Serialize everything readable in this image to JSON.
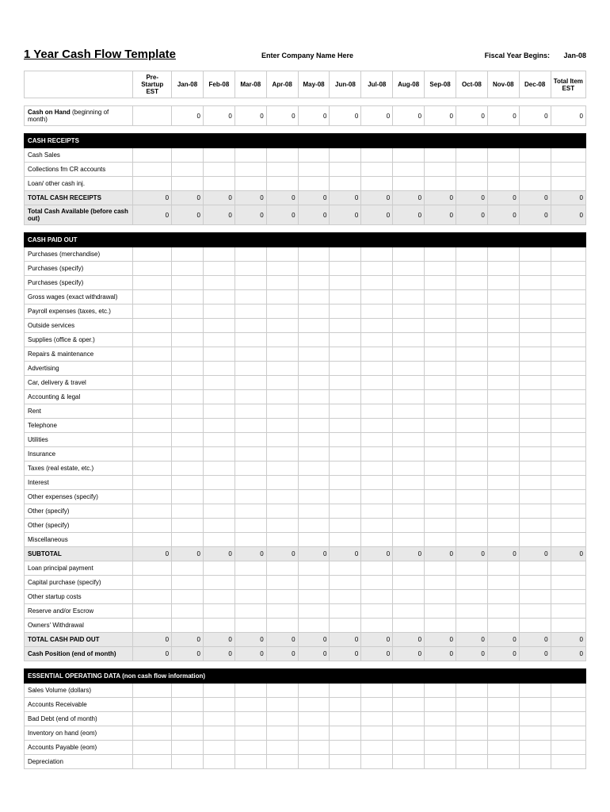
{
  "header": {
    "title": "1 Year Cash Flow Template",
    "company_name": "Enter Company Name Here",
    "fiscal_label": "Fiscal Year Begins:",
    "fiscal_value": "Jan-08"
  },
  "columns": [
    "Pre-Startup EST",
    "Jan-08",
    "Feb-08",
    "Mar-08",
    "Apr-08",
    "May-08",
    "Jun-08",
    "Jul-08",
    "Aug-08",
    "Sep-08",
    "Oct-08",
    "Nov-08",
    "Dec-08",
    "Total Item EST"
  ],
  "rows": [
    {
      "type": "spacer"
    },
    {
      "type": "data",
      "label": "<b>Cash on Hand</b> (beginning of month)",
      "vals": [
        "",
        "0",
        "0",
        "0",
        "0",
        "0",
        "0",
        "0",
        "0",
        "0",
        "0",
        "0",
        "0",
        "0"
      ]
    },
    {
      "type": "spacer"
    },
    {
      "type": "section",
      "label": "CASH RECEIPTS"
    },
    {
      "type": "data",
      "label": "Cash Sales",
      "vals": [
        "",
        "",
        "",
        "",
        "",
        "",
        "",
        "",
        "",
        "",
        "",
        "",
        "",
        ""
      ]
    },
    {
      "type": "data",
      "label": "Collections fm CR accounts",
      "vals": [
        "",
        "",
        "",
        "",
        "",
        "",
        "",
        "",
        "",
        "",
        "",
        "",
        "",
        ""
      ]
    },
    {
      "type": "data",
      "label": "Loan/ other cash inj.",
      "vals": [
        "",
        "",
        "",
        "",
        "",
        "",
        "",
        "",
        "",
        "",
        "",
        "",
        "",
        ""
      ]
    },
    {
      "type": "bold-shaded",
      "label": "TOTAL CASH RECEIPTS",
      "vals": [
        "0",
        "0",
        "0",
        "0",
        "0",
        "0",
        "0",
        "0",
        "0",
        "0",
        "0",
        "0",
        "0",
        "0"
      ]
    },
    {
      "type": "bold-shaded",
      "label": "<b>Total Cash Available</b> (before cash out)",
      "vals": [
        "0",
        "0",
        "0",
        "0",
        "0",
        "0",
        "0",
        "0",
        "0",
        "0",
        "0",
        "0",
        "0",
        "0"
      ]
    },
    {
      "type": "spacer"
    },
    {
      "type": "section",
      "label": "CASH PAID OUT"
    },
    {
      "type": "data",
      "label": "Purchases (merchandise)",
      "vals": [
        "",
        "",
        "",
        "",
        "",
        "",
        "",
        "",
        "",
        "",
        "",
        "",
        "",
        ""
      ]
    },
    {
      "type": "data",
      "label": "Purchases (specify)",
      "vals": [
        "",
        "",
        "",
        "",
        "",
        "",
        "",
        "",
        "",
        "",
        "",
        "",
        "",
        ""
      ]
    },
    {
      "type": "data",
      "label": "Purchases (specify)",
      "vals": [
        "",
        "",
        "",
        "",
        "",
        "",
        "",
        "",
        "",
        "",
        "",
        "",
        "",
        ""
      ]
    },
    {
      "type": "data",
      "label": "Gross wages (exact withdrawal)",
      "vals": [
        "",
        "",
        "",
        "",
        "",
        "",
        "",
        "",
        "",
        "",
        "",
        "",
        "",
        ""
      ]
    },
    {
      "type": "data",
      "label": "Payroll expenses (taxes, etc.)",
      "vals": [
        "",
        "",
        "",
        "",
        "",
        "",
        "",
        "",
        "",
        "",
        "",
        "",
        "",
        ""
      ]
    },
    {
      "type": "data",
      "label": "Outside services",
      "vals": [
        "",
        "",
        "",
        "",
        "",
        "",
        "",
        "",
        "",
        "",
        "",
        "",
        "",
        ""
      ]
    },
    {
      "type": "data",
      "label": "Supplies (office & oper.)",
      "vals": [
        "",
        "",
        "",
        "",
        "",
        "",
        "",
        "",
        "",
        "",
        "",
        "",
        "",
        ""
      ]
    },
    {
      "type": "data",
      "label": "Repairs & maintenance",
      "vals": [
        "",
        "",
        "",
        "",
        "",
        "",
        "",
        "",
        "",
        "",
        "",
        "",
        "",
        ""
      ]
    },
    {
      "type": "data",
      "label": "Advertising",
      "vals": [
        "",
        "",
        "",
        "",
        "",
        "",
        "",
        "",
        "",
        "",
        "",
        "",
        "",
        ""
      ]
    },
    {
      "type": "data",
      "label": "Car, delivery & travel",
      "vals": [
        "",
        "",
        "",
        "",
        "",
        "",
        "",
        "",
        "",
        "",
        "",
        "",
        "",
        ""
      ]
    },
    {
      "type": "data",
      "label": "Accounting & legal",
      "vals": [
        "",
        "",
        "",
        "",
        "",
        "",
        "",
        "",
        "",
        "",
        "",
        "",
        "",
        ""
      ]
    },
    {
      "type": "data",
      "label": "Rent",
      "vals": [
        "",
        "",
        "",
        "",
        "",
        "",
        "",
        "",
        "",
        "",
        "",
        "",
        "",
        ""
      ]
    },
    {
      "type": "data",
      "label": "Telephone",
      "vals": [
        "",
        "",
        "",
        "",
        "",
        "",
        "",
        "",
        "",
        "",
        "",
        "",
        "",
        ""
      ]
    },
    {
      "type": "data",
      "label": "Utilities",
      "vals": [
        "",
        "",
        "",
        "",
        "",
        "",
        "",
        "",
        "",
        "",
        "",
        "",
        "",
        ""
      ]
    },
    {
      "type": "data",
      "label": "Insurance",
      "vals": [
        "",
        "",
        "",
        "",
        "",
        "",
        "",
        "",
        "",
        "",
        "",
        "",
        "",
        ""
      ]
    },
    {
      "type": "data",
      "label": "Taxes (real estate, etc.)",
      "vals": [
        "",
        "",
        "",
        "",
        "",
        "",
        "",
        "",
        "",
        "",
        "",
        "",
        "",
        ""
      ]
    },
    {
      "type": "data",
      "label": "Interest",
      "vals": [
        "",
        "",
        "",
        "",
        "",
        "",
        "",
        "",
        "",
        "",
        "",
        "",
        "",
        ""
      ]
    },
    {
      "type": "data",
      "label": "Other expenses (specify)",
      "vals": [
        "",
        "",
        "",
        "",
        "",
        "",
        "",
        "",
        "",
        "",
        "",
        "",
        "",
        ""
      ]
    },
    {
      "type": "data",
      "label": "Other (specify)",
      "vals": [
        "",
        "",
        "",
        "",
        "",
        "",
        "",
        "",
        "",
        "",
        "",
        "",
        "",
        ""
      ]
    },
    {
      "type": "data",
      "label": "Other (specify)",
      "vals": [
        "",
        "",
        "",
        "",
        "",
        "",
        "",
        "",
        "",
        "",
        "",
        "",
        "",
        ""
      ]
    },
    {
      "type": "data",
      "label": "Miscellaneous",
      "vals": [
        "",
        "",
        "",
        "",
        "",
        "",
        "",
        "",
        "",
        "",
        "",
        "",
        "",
        ""
      ]
    },
    {
      "type": "bold-shaded",
      "label": "SUBTOTAL",
      "vals": [
        "0",
        "0",
        "0",
        "0",
        "0",
        "0",
        "0",
        "0",
        "0",
        "0",
        "0",
        "0",
        "0",
        "0"
      ]
    },
    {
      "type": "data",
      "label": "Loan principal payment",
      "vals": [
        "",
        "",
        "",
        "",
        "",
        "",
        "",
        "",
        "",
        "",
        "",
        "",
        "",
        ""
      ]
    },
    {
      "type": "data",
      "label": "Capital purchase (specify)",
      "vals": [
        "",
        "",
        "",
        "",
        "",
        "",
        "",
        "",
        "",
        "",
        "",
        "",
        "",
        ""
      ]
    },
    {
      "type": "data",
      "label": "Other startup costs",
      "vals": [
        "",
        "",
        "",
        "",
        "",
        "",
        "",
        "",
        "",
        "",
        "",
        "",
        "",
        ""
      ]
    },
    {
      "type": "data",
      "label": "Reserve and/or Escrow",
      "vals": [
        "",
        "",
        "",
        "",
        "",
        "",
        "",
        "",
        "",
        "",
        "",
        "",
        "",
        ""
      ]
    },
    {
      "type": "data",
      "label": "Owners' Withdrawal",
      "vals": [
        "",
        "",
        "",
        "",
        "",
        "",
        "",
        "",
        "",
        "",
        "",
        "",
        "",
        ""
      ]
    },
    {
      "type": "bold-shaded",
      "label": "TOTAL CASH PAID OUT",
      "vals": [
        "0",
        "0",
        "0",
        "0",
        "0",
        "0",
        "0",
        "0",
        "0",
        "0",
        "0",
        "0",
        "0",
        "0"
      ]
    },
    {
      "type": "bold-shaded",
      "label": "<b>Cash Position</b> (end of month)",
      "vals": [
        "0",
        "0",
        "0",
        "0",
        "0",
        "0",
        "0",
        "0",
        "0",
        "0",
        "0",
        "0",
        "0",
        "0"
      ]
    },
    {
      "type": "spacer"
    },
    {
      "type": "section",
      "label": "ESSENTIAL OPERATING DATA (non cash flow information)"
    },
    {
      "type": "data",
      "label": "Sales Volume (dollars)",
      "vals": [
        "",
        "",
        "",
        "",
        "",
        "",
        "",
        "",
        "",
        "",
        "",
        "",
        "",
        ""
      ]
    },
    {
      "type": "data",
      "label": "Accounts Receivable",
      "vals": [
        "",
        "",
        "",
        "",
        "",
        "",
        "",
        "",
        "",
        "",
        "",
        "",
        "",
        ""
      ]
    },
    {
      "type": "data",
      "label": "Bad Debt (end of month)",
      "vals": [
        "",
        "",
        "",
        "",
        "",
        "",
        "",
        "",
        "",
        "",
        "",
        "",
        "",
        ""
      ]
    },
    {
      "type": "data",
      "label": "Inventory on hand (eom)",
      "vals": [
        "",
        "",
        "",
        "",
        "",
        "",
        "",
        "",
        "",
        "",
        "",
        "",
        "",
        ""
      ]
    },
    {
      "type": "data",
      "label": "Accounts Payable (eom)",
      "vals": [
        "",
        "",
        "",
        "",
        "",
        "",
        "",
        "",
        "",
        "",
        "",
        "",
        "",
        ""
      ]
    },
    {
      "type": "data",
      "label": "Depreciation",
      "vals": [
        "",
        "",
        "",
        "",
        "",
        "",
        "",
        "",
        "",
        "",
        "",
        "",
        "",
        ""
      ]
    }
  ]
}
